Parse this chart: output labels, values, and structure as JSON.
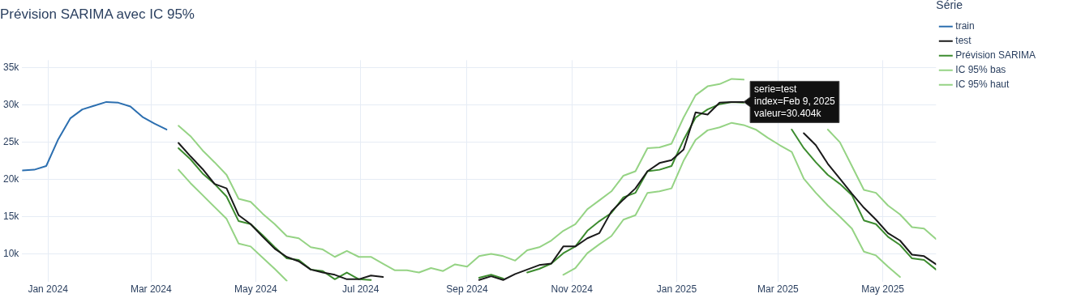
{
  "chart_data": {
    "type": "line",
    "title": "Prévision SARIMA avec IC 95%",
    "legend_title": "Série",
    "legend": "top right",
    "grid": true,
    "marker": "none",
    "line_style": "solid",
    "xlim": [
      "2023-12-17",
      "2025-06-01"
    ],
    "xticks": [
      {
        "value": "2024-01-01",
        "label": "Jan 2024"
      },
      {
        "value": "2024-03-01",
        "label": "Mar 2024"
      },
      {
        "value": "2024-05-01",
        "label": "May 2024"
      },
      {
        "value": "2024-07-01",
        "label": "Jul 2024"
      },
      {
        "value": "2024-09-01",
        "label": "Sep 2024"
      },
      {
        "value": "2024-11-01",
        "label": "Nov 2024"
      },
      {
        "value": "2025-01-01",
        "label": "Jan 2025"
      },
      {
        "value": "2025-03-01",
        "label": "Mar 2025"
      },
      {
        "value": "2025-05-01",
        "label": "May 2025"
      }
    ],
    "ylim": [
      6300,
      36000
    ],
    "yticks": [
      {
        "value": 10000,
        "label": "10k"
      },
      {
        "value": 15000,
        "label": "15k"
      },
      {
        "value": 20000,
        "label": "20k"
      },
      {
        "value": 25000,
        "label": "25k"
      },
      {
        "value": 30000,
        "label": "30k"
      },
      {
        "value": 35000,
        "label": "35k"
      }
    ],
    "x": [
      "2024-03-17",
      "2024-03-24",
      "2024-03-31",
      "2024-04-07",
      "2024-04-14",
      "2024-04-21",
      "2024-04-28",
      "2024-05-05",
      "2024-05-12",
      "2024-05-19",
      "2024-05-26",
      "2024-06-02",
      "2024-06-09",
      "2024-06-16",
      "2024-06-23",
      "2024-06-30",
      "2024-07-07",
      "2024-07-14",
      "2024-07-21",
      "2024-07-28",
      "2024-08-04",
      "2024-08-11",
      "2024-08-18",
      "2024-08-25",
      "2024-09-01",
      "2024-09-08",
      "2024-09-15",
      "2024-09-22",
      "2024-09-29",
      "2024-10-06",
      "2024-10-13",
      "2024-10-20",
      "2024-10-27",
      "2024-11-03",
      "2024-11-10",
      "2024-11-17",
      "2024-11-24",
      "2024-12-01",
      "2024-12-08",
      "2024-12-15",
      "2024-12-22",
      "2024-12-29",
      "2025-01-05",
      "2025-01-12",
      "2025-01-19",
      "2025-01-26",
      "2025-02-02",
      "2025-02-09",
      "2025-02-16",
      "2025-02-23",
      "2025-03-02",
      "2025-03-09",
      "2025-03-16",
      "2025-03-23",
      "2025-03-30",
      "2025-04-06",
      "2025-04-13",
      "2025-04-20",
      "2025-04-27",
      "2025-05-04",
      "2025-05-11",
      "2025-05-18",
      "2025-05-25",
      "2025-06-01"
    ],
    "series": [
      {
        "name": "train",
        "color": "#2c6fb0",
        "x": [
          "2023-12-17",
          "2023-12-24",
          "2023-12-31",
          "2024-01-07",
          "2024-01-14",
          "2024-01-21",
          "2024-01-28",
          "2024-02-04",
          "2024-02-11",
          "2024-02-18",
          "2024-02-25",
          "2024-03-03",
          "2024-03-10"
        ],
        "values": [
          21200,
          21300,
          21800,
          25400,
          28200,
          29400,
          29900,
          30400,
          30300,
          29800,
          28400,
          27500,
          26700
        ]
      },
      {
        "name": "test",
        "color": "#1a1a1a",
        "values": [
          24900,
          23100,
          21400,
          19400,
          18800,
          15200,
          14000,
          12300,
          10700,
          9600,
          9000,
          7900,
          7500,
          7200,
          6600,
          6600,
          7100,
          6900,
          null,
          null,
          null,
          null,
          null,
          null,
          null,
          6500,
          7000,
          6500,
          7300,
          7900,
          8500,
          8700,
          11000,
          11000,
          12100,
          12800,
          15700,
          17300,
          18800,
          21100,
          22200,
          22600,
          24000,
          29000,
          28700,
          30300,
          30400,
          30404,
          null,
          null,
          null,
          null,
          26200,
          24600,
          22100,
          20100,
          18100,
          16200,
          14600,
          12800,
          11800,
          9900,
          9700,
          8600
        ]
      },
      {
        "name": "Prévision SARIMA",
        "color": "#3d8c2f",
        "values": [
          24200,
          22700,
          20800,
          19400,
          17700,
          14400,
          14000,
          12500,
          10900,
          9400,
          9200,
          7900,
          7700,
          6600,
          7500,
          6600,
          6500,
          null,
          null,
          null,
          null,
          null,
          null,
          null,
          null,
          6800,
          7200,
          6700,
          null,
          7500,
          8000,
          8700,
          10100,
          11000,
          13100,
          14400,
          15500,
          17600,
          18200,
          21100,
          21300,
          21800,
          25300,
          28300,
          29400,
          30100,
          30400,
          30300,
          null,
          null,
          null,
          26700,
          24200,
          22300,
          20600,
          19400,
          17900,
          14500,
          14000,
          12300,
          11200,
          9400,
          9200,
          7900
        ]
      },
      {
        "name": "IC 95% bas",
        "color": "#95d384",
        "values": [
          21300,
          19500,
          17900,
          16300,
          14700,
          11400,
          11000,
          9500,
          8000,
          6400,
          null,
          null,
          null,
          null,
          null,
          null,
          null,
          null,
          null,
          null,
          null,
          null,
          null,
          null,
          null,
          null,
          null,
          null,
          null,
          null,
          null,
          null,
          7200,
          8100,
          10100,
          11300,
          12400,
          14600,
          15200,
          18200,
          18400,
          18800,
          22500,
          25300,
          26600,
          27000,
          27600,
          27300,
          26700,
          25600,
          24600,
          23700,
          20100,
          18200,
          16500,
          15000,
          13400,
          10300,
          9800,
          8300,
          6900,
          null,
          null,
          null
        ]
      },
      {
        "name": "IC 95% haut",
        "color": "#95d384",
        "values": [
          27200,
          25800,
          23900,
          22300,
          20600,
          17400,
          17000,
          15400,
          14000,
          12400,
          12100,
          10900,
          10600,
          9600,
          10400,
          9600,
          9600,
          8700,
          7800,
          7800,
          7500,
          8100,
          7700,
          8600,
          8300,
          9700,
          10000,
          9700,
          9100,
          10500,
          10900,
          11800,
          13100,
          14000,
          16000,
          17200,
          18400,
          20500,
          21100,
          24200,
          24300,
          24800,
          28300,
          31300,
          32500,
          32800,
          33500,
          33400,
          null,
          null,
          null,
          null,
          null,
          null,
          26700,
          25000,
          21800,
          18600,
          18200,
          16500,
          15300,
          13600,
          13400,
          12000
        ]
      }
    ],
    "annotations": [
      {
        "text": "serie=test\nindex=Feb 9, 2025\nvaleur=30.404k",
        "x": "2025-02-09",
        "y": 30404
      }
    ]
  }
}
